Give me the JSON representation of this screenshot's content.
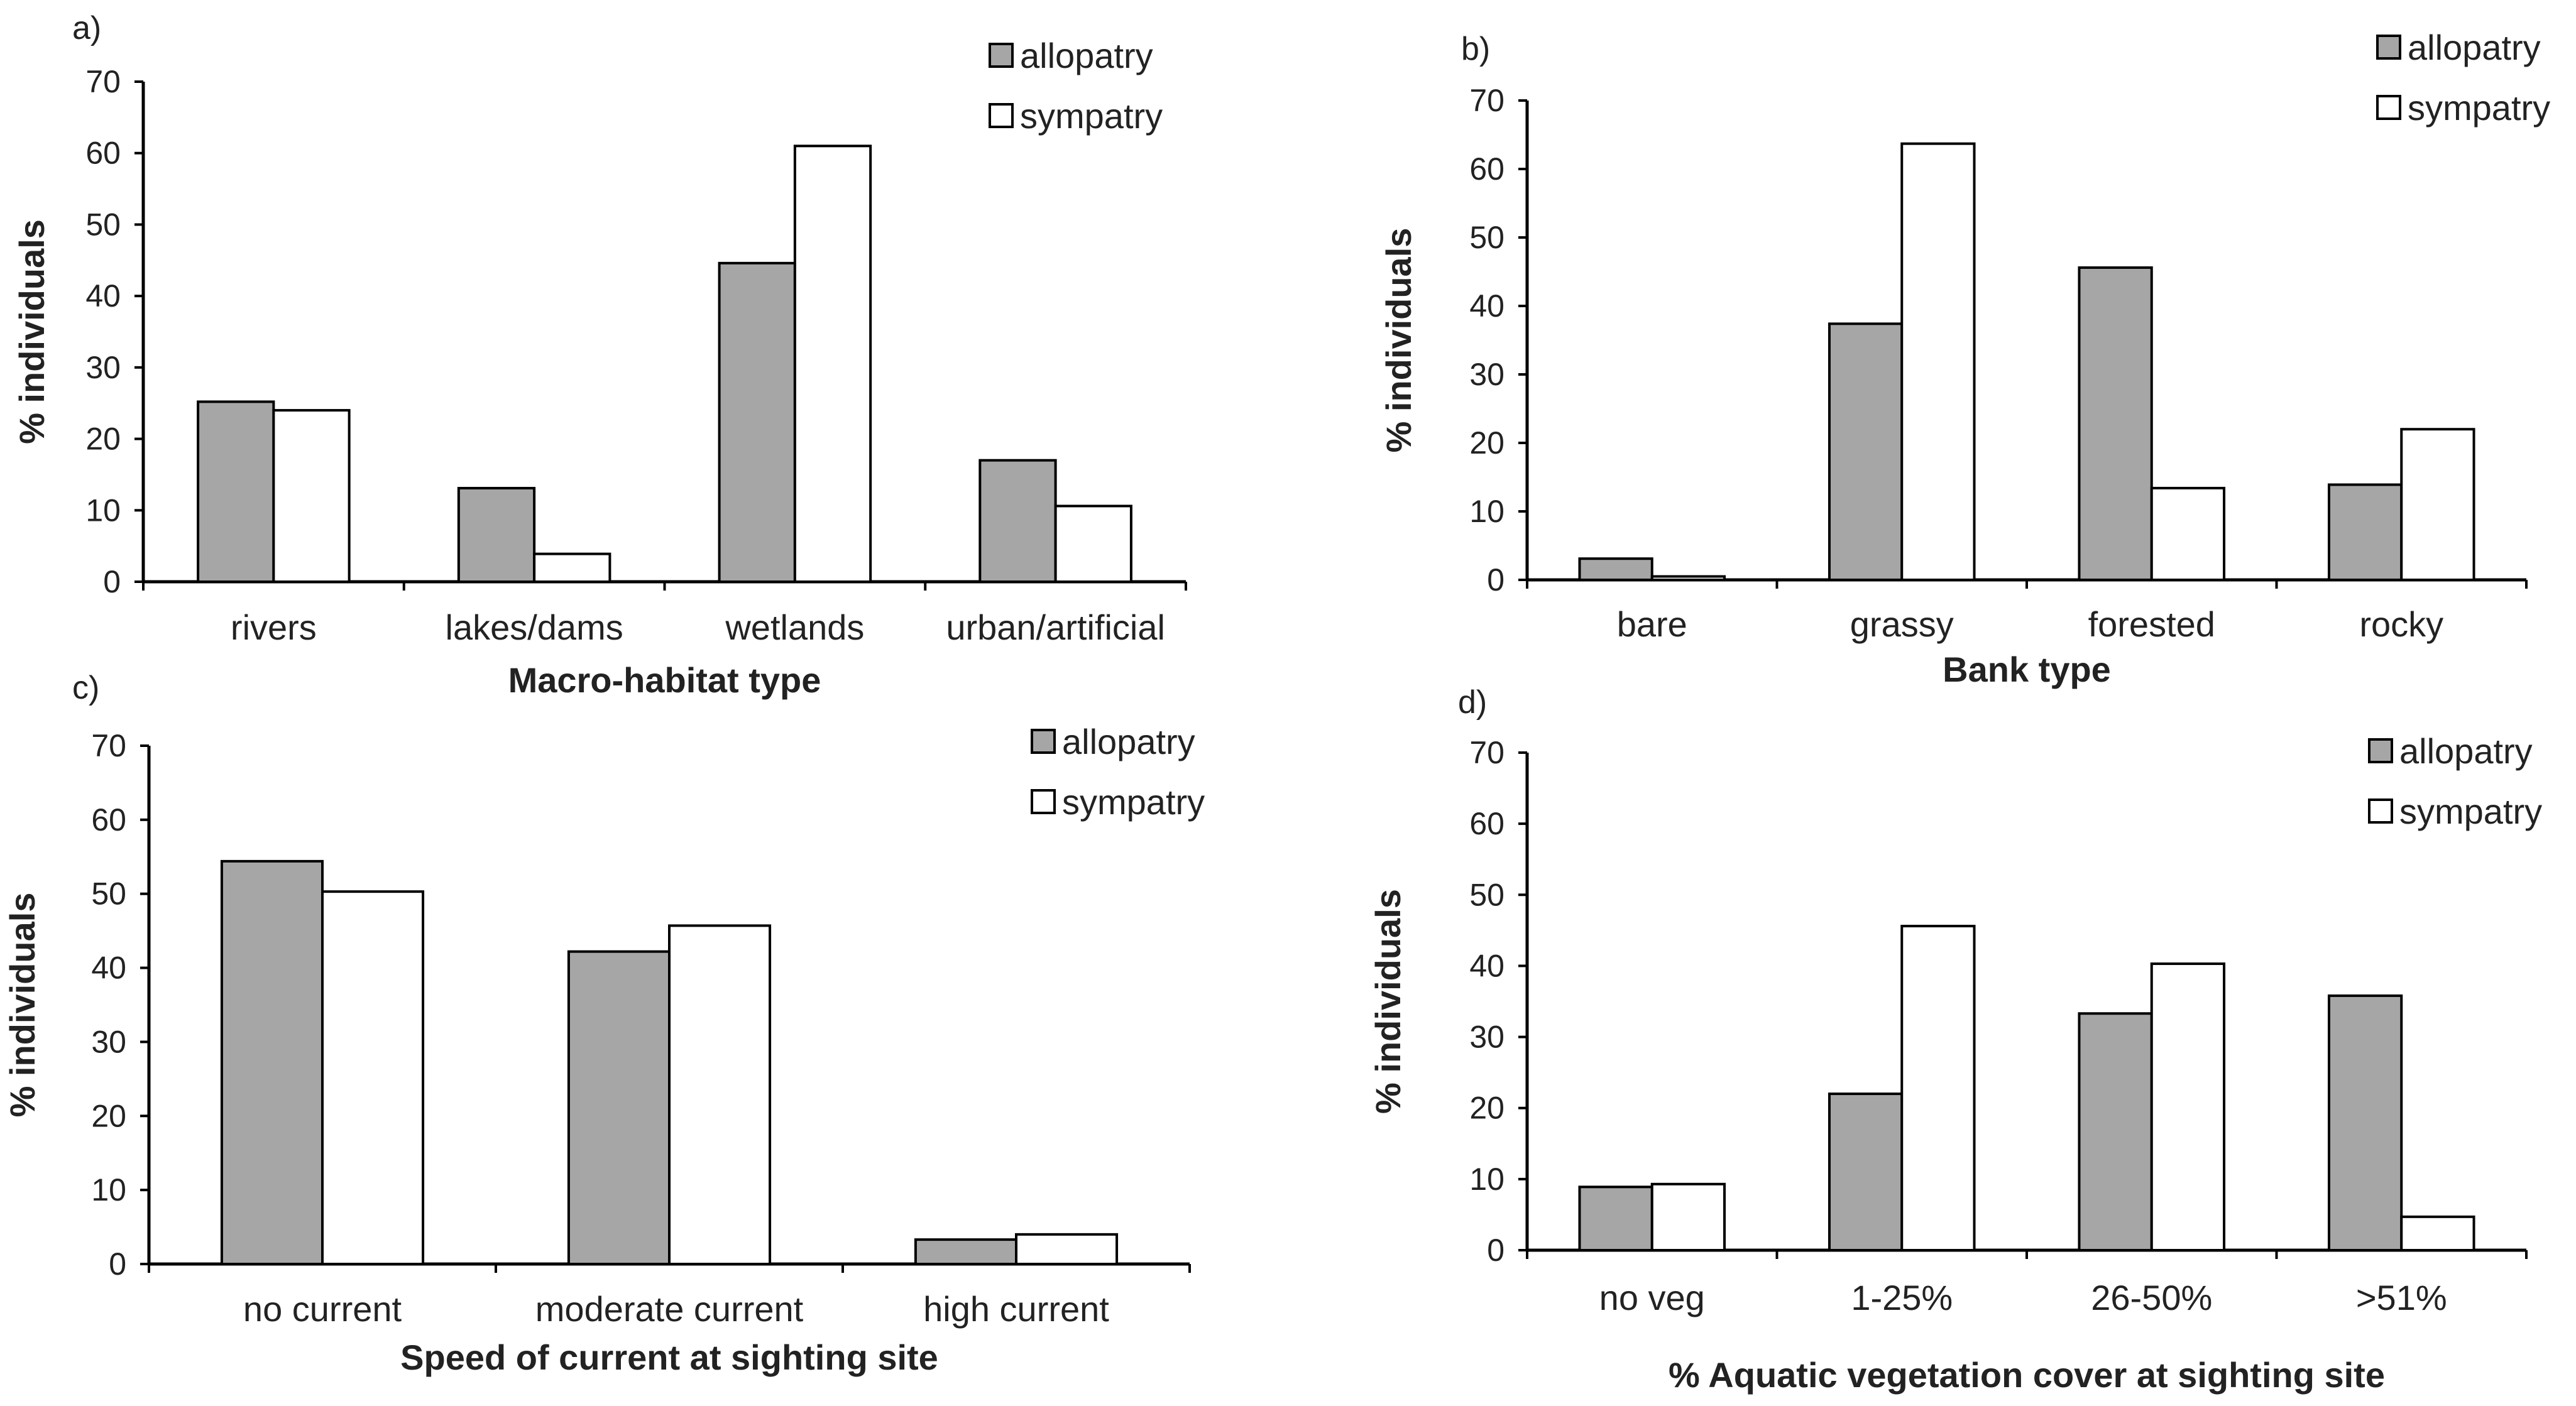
{
  "colors": {
    "allopatry": "#a6a6a6",
    "sympatry": "#ffffff",
    "stroke": "#000000"
  },
  "chart_data": [
    {
      "type": "bar",
      "panel": "a)",
      "categories": [
        "rivers",
        "lakes/dams",
        "wetlands",
        "urban/artificial"
      ],
      "series": [
        {
          "name": "allopatry",
          "values": [
            25.2,
            13.1,
            44.6,
            17.0
          ]
        },
        {
          "name": "sympatry",
          "values": [
            24.0,
            3.9,
            61.0,
            10.6
          ]
        }
      ],
      "xlabel": "Macro-habitat type",
      "ylabel": "% individuals",
      "ylim": [
        0,
        70
      ],
      "yticks": [
        0,
        10,
        20,
        30,
        40,
        50,
        60,
        70
      ],
      "legend": "top-right",
      "grid": false
    },
    {
      "type": "bar",
      "panel": "b)",
      "categories": [
        "bare",
        "grassy",
        "forested",
        "rocky"
      ],
      "series": [
        {
          "name": "allopatry",
          "values": [
            3.1,
            37.4,
            45.6,
            13.9
          ]
        },
        {
          "name": "sympatry",
          "values": [
            0.5,
            63.7,
            13.4,
            22.0
          ]
        }
      ],
      "xlabel": "Bank type",
      "ylabel": "% individuals",
      "ylim": [
        0,
        70
      ],
      "yticks": [
        0,
        10,
        20,
        30,
        40,
        50,
        60,
        70
      ],
      "legend": "top-right",
      "grid": false
    },
    {
      "type": "bar",
      "panel": "c)",
      "categories": [
        "no current",
        "moderate current",
        "high current"
      ],
      "series": [
        {
          "name": "allopatry",
          "values": [
            54.4,
            42.2,
            3.3
          ]
        },
        {
          "name": "sympatry",
          "values": [
            50.3,
            45.7,
            4.0
          ]
        }
      ],
      "xlabel": "Speed of current at sighting site",
      "ylabel": "% individuals",
      "ylim": [
        0,
        70
      ],
      "yticks": [
        0,
        10,
        20,
        30,
        40,
        50,
        60,
        70
      ],
      "legend": "top-right",
      "grid": false
    },
    {
      "type": "bar",
      "panel": "d)",
      "categories": [
        "no veg",
        "1-25%",
        "26-50%",
        ">51%"
      ],
      "series": [
        {
          "name": "allopatry",
          "values": [
            8.9,
            22.0,
            33.3,
            35.8
          ]
        },
        {
          "name": "sympatry",
          "values": [
            9.3,
            45.6,
            40.3,
            4.7
          ]
        }
      ],
      "xlabel": "% Aquatic vegetation cover at sighting site",
      "ylabel": "% individuals",
      "ylim": [
        0,
        70
      ],
      "yticks": [
        0,
        10,
        20,
        30,
        40,
        50,
        60,
        70
      ],
      "legend": "top-right",
      "grid": false
    }
  ]
}
